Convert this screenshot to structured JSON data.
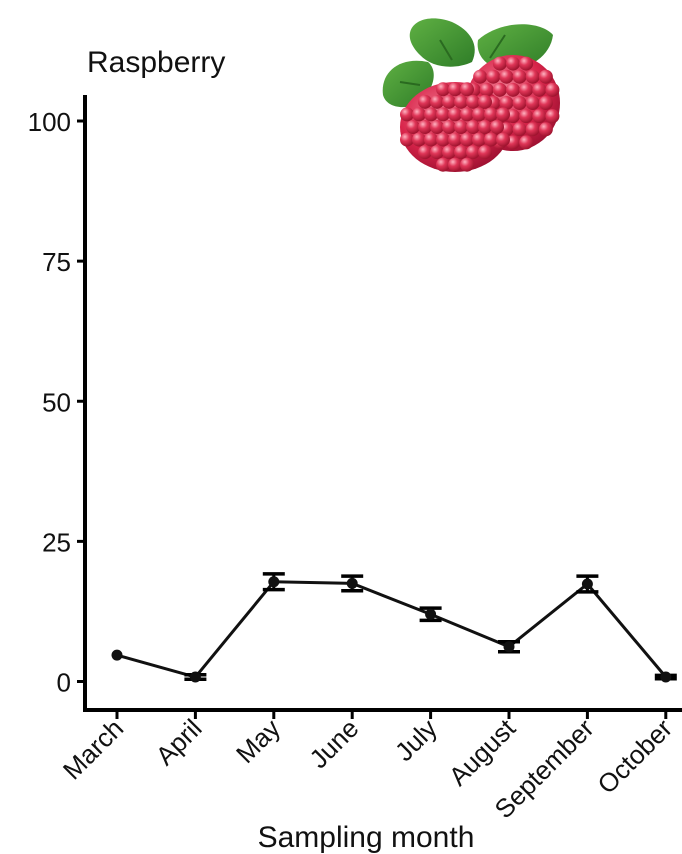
{
  "chart_data": {
    "type": "line",
    "title": "Raspberry",
    "xlabel": "Sampling month",
    "ylabel": "",
    "categories": [
      "March",
      "April",
      "May",
      "June",
      "July",
      "August",
      "September",
      "October"
    ],
    "series": [
      {
        "values": [
          4.7,
          0.8,
          17.8,
          17.5,
          12.0,
          6.2,
          17.4,
          0.8
        ],
        "error": [
          0,
          0.4,
          1.4,
          1.3,
          1.1,
          0.9,
          1.4,
          0.3
        ]
      }
    ],
    "yticks": [
      "0",
      "25",
      "50",
      "75",
      "100"
    ],
    "ylim": [
      -4,
      104.5
    ],
    "grid": false,
    "legend": "none",
    "colors": {
      "line": "#111111",
      "axis": "#000000"
    },
    "icon": "raspberry-icon"
  }
}
